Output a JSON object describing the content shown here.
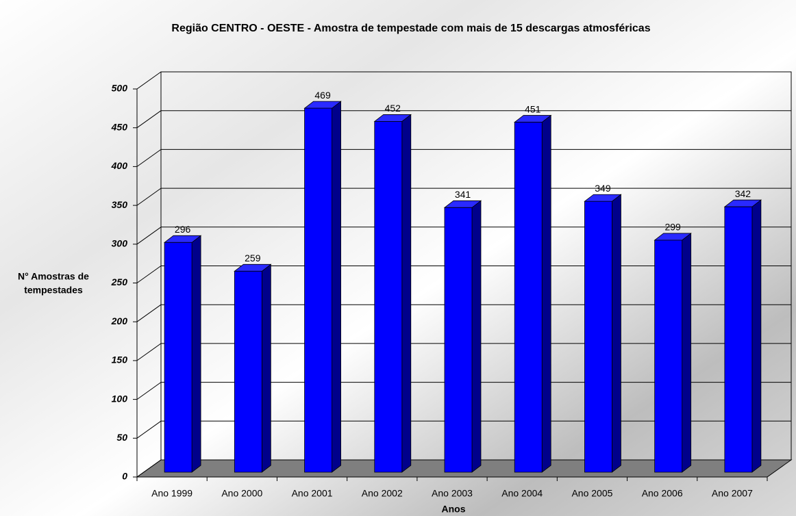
{
  "chart_data": {
    "type": "bar3d",
    "title": "Região CENTRO - OESTE - Amostra de tempestade com mais de 15 descargas atmosféricas",
    "x_label": "Anos",
    "y_label": [
      "N° Amostras de",
      "tempestades"
    ],
    "categories": [
      "Ano 1999",
      "Ano 2000",
      "Ano 2001",
      "Ano 2002",
      "Ano 2003",
      "Ano 2004",
      "Ano 2005",
      "Ano 2006",
      "Ano 2007"
    ],
    "values": [
      296,
      259,
      469,
      452,
      341,
      451,
      349,
      299,
      342
    ],
    "color": "#0000ff",
    "ylim": [
      0,
      500
    ],
    "yticks": [
      0,
      50,
      100,
      150,
      200,
      250,
      300,
      350,
      400,
      450,
      500
    ],
    "grid": true
  }
}
